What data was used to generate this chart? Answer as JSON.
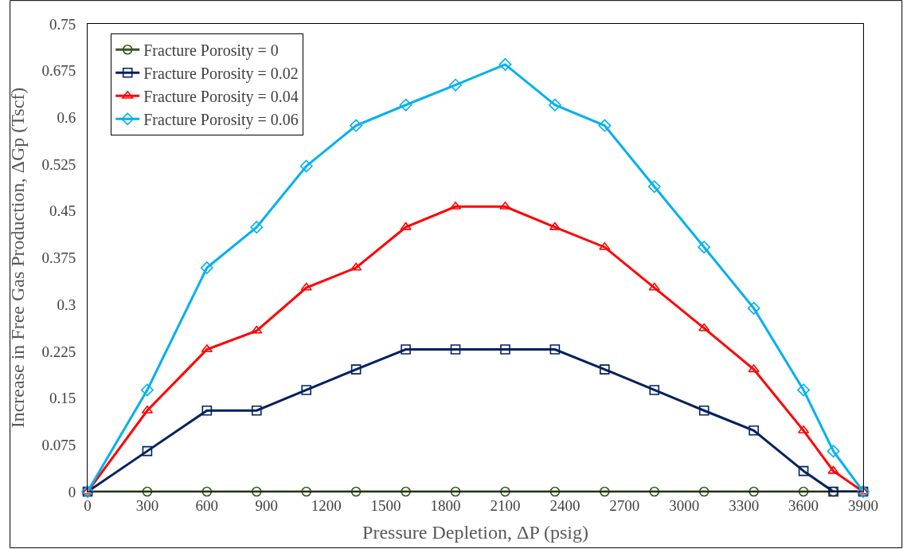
{
  "chart_data": {
    "type": "line",
    "xlabel": "Pressure Depletion, ΔP (psig)",
    "ylabel": "Increase in Free Gas Production, ΔGp (Tscf)",
    "x": [
      0,
      300,
      600,
      850,
      1100,
      1350,
      1600,
      1850,
      2100,
      2350,
      2600,
      2850,
      3100,
      3350,
      3600,
      3750,
      3900
    ],
    "series": [
      {
        "name": "Fracture Porosity = 0",
        "color": "#375623",
        "marker": "circle",
        "values": [
          0,
          0,
          0,
          0,
          0,
          0,
          0,
          0,
          0,
          0,
          0,
          0,
          0,
          0,
          0,
          0,
          0
        ]
      },
      {
        "name": "Fracture Porosity = 0.02",
        "color": "#002060",
        "marker": "square",
        "values": [
          0,
          0.065,
          0.13,
          0.13,
          0.163,
          0.196,
          0.228,
          0.228,
          0.228,
          0.228,
          0.196,
          0.163,
          0.13,
          0.098,
          0.033,
          0,
          0
        ]
      },
      {
        "name": "Fracture Porosity = 0.04",
        "color": "#ff0000",
        "marker": "triangle",
        "values": [
          0,
          0.13,
          0.228,
          0.258,
          0.327,
          0.359,
          0.424,
          0.457,
          0.457,
          0.424,
          0.392,
          0.327,
          0.262,
          0.196,
          0.098,
          0.033,
          0
        ]
      },
      {
        "name": "Fracture Porosity = 0.06",
        "color": "#00b0f0",
        "marker": "diamond",
        "values": [
          0,
          0.163,
          0.359,
          0.424,
          0.522,
          0.587,
          0.62,
          0.652,
          0.685,
          0.62,
          0.587,
          0.489,
          0.392,
          0.294,
          0.163,
          0.065,
          0
        ]
      }
    ],
    "xlim": [
      0,
      3900
    ],
    "xticks": [
      0,
      300,
      600,
      900,
      1200,
      1500,
      1800,
      2100,
      2400,
      2700,
      3000,
      3300,
      3600,
      3900
    ],
    "ylim": [
      0,
      0.75
    ],
    "yticks": [
      0,
      0.075,
      0.15,
      0.225,
      0.3,
      0.375,
      0.45,
      0.525,
      0.6,
      0.675,
      0.75
    ],
    "legend": "top left",
    "grid": false,
    "line_style": "solid"
  }
}
